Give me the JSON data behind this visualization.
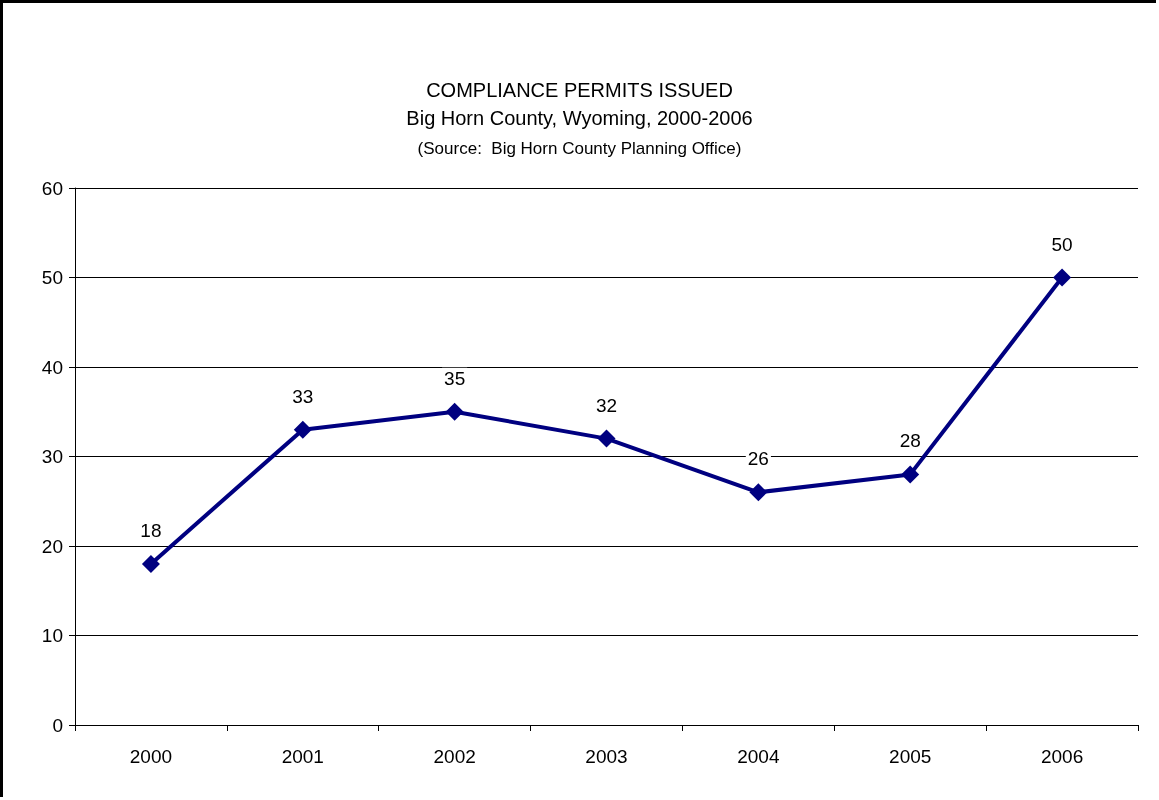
{
  "chart_data": {
    "type": "line",
    "title": "COMPLIANCE PERMITS ISSUED",
    "subtitle": "Big Horn County, Wyoming, 2000-2006",
    "annotations": [
      "(Source:  Big Horn County Planning Office)"
    ],
    "categories": [
      "2000",
      "2001",
      "2002",
      "2003",
      "2004",
      "2005",
      "2006"
    ],
    "series": [
      {
        "color": "#000080",
        "values": [
          18,
          33,
          35,
          32,
          26,
          28,
          50
        ]
      }
    ],
    "ylim": [
      0,
      60
    ],
    "yticks": [
      0,
      10,
      20,
      30,
      40,
      50,
      60
    ],
    "grid": "y",
    "marker": "diamond",
    "line_style": "solid",
    "data_labels": true
  }
}
